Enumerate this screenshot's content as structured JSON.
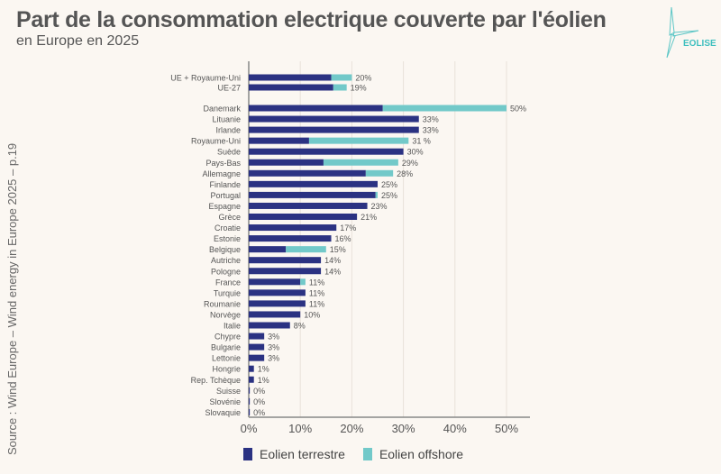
{
  "title": "Part de la consommation electrique couverte par l'éolien",
  "subtitle": "en Europe en 2025",
  "logo_text": "EOLISE",
  "source": "Source :  Wind Europe – Wind energy in Europe 2025 – p.19",
  "colors": {
    "onshore": "#2b3282",
    "offshore": "#72c9c9",
    "background": "#fbf7f2"
  },
  "chart_data": {
    "type": "bar",
    "orientation": "horizontal",
    "stacked": true,
    "xlim": [
      0,
      55
    ],
    "x_ticks": [
      "0%",
      "10%",
      "20%",
      "30%",
      "40%",
      "50%"
    ],
    "grid": true,
    "legend_position": "bottom",
    "categories": [
      "UE + Royaume-Uni",
      "UE-27",
      "Danemark",
      "Lituanie",
      "Irlande",
      "Royaume-Uni",
      "Suède",
      "Pays-Bas",
      "Allemagne",
      "Finlande",
      "Portugal",
      "Espagne",
      "Grèce",
      "Croatie",
      "Estonie",
      "Belgique",
      "Autriche",
      "Pologne",
      "France",
      "Turquie",
      "Roumanie",
      "Norvège",
      "Italie",
      "Chypre",
      "Bulgarie",
      "Lettonie",
      "Hongrie",
      "Rep. Tchèque",
      "Suisse",
      "Slovénie",
      "Slovaquie"
    ],
    "series": [
      {
        "name": "Eolien terrestre",
        "values": [
          16,
          16.4,
          26,
          33,
          33,
          11.7,
          30,
          14.5,
          22.7,
          25,
          24.6,
          23,
          21,
          17,
          16,
          7.2,
          14,
          14,
          10,
          11,
          11,
          10,
          8,
          3,
          3,
          3,
          1,
          1,
          0.2,
          0.2,
          0.2
        ]
      },
      {
        "name": "Eolien offshore",
        "values": [
          4,
          2.6,
          24,
          0,
          0,
          19.3,
          0,
          14.5,
          5.3,
          0,
          0.4,
          0,
          0,
          0,
          0,
          7.8,
          0,
          0,
          1,
          0,
          0,
          0,
          0,
          0,
          0,
          0,
          0,
          0,
          0,
          0,
          0
        ]
      }
    ],
    "data_labels": [
      "20%",
      "19%",
      "50%",
      "33%",
      "33%",
      "31 %",
      "30%",
      "29%",
      "28%",
      "25%",
      "25%",
      "23%",
      "21%",
      "17%",
      "16%",
      "15%",
      "14%",
      "14%",
      "11%",
      "11%",
      "11%",
      "10%",
      "8%",
      "3%",
      "3%",
      "3%",
      "1%",
      "1%",
      "0%",
      "0%",
      "0%"
    ]
  }
}
